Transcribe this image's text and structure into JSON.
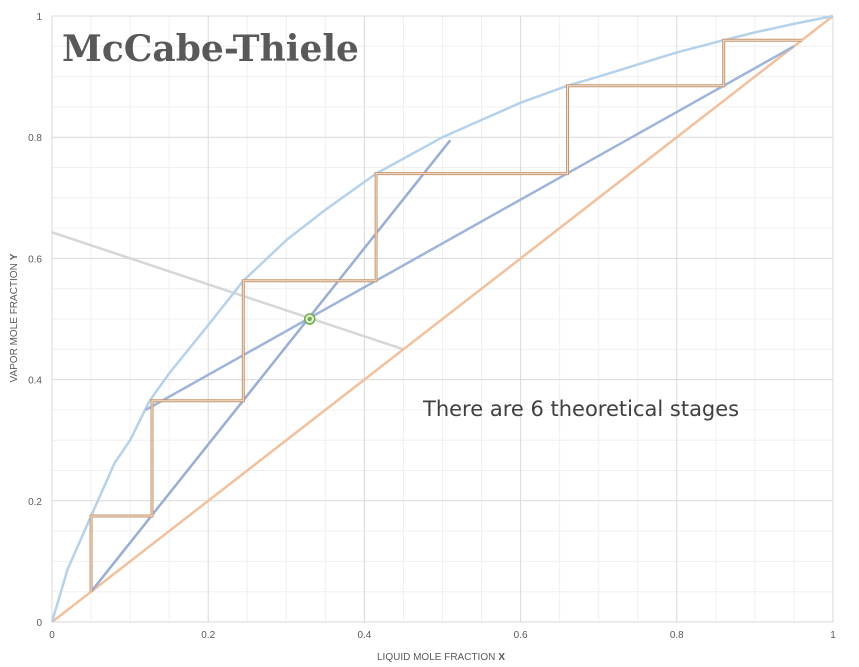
{
  "chart_data": {
    "type": "line",
    "title": "McCabe-Thiele",
    "xlabel": "LIQUID MOLE FRACTION",
    "xlabel_symbol": "X",
    "ylabel": "VAPOR MOLE FRACTION",
    "ylabel_symbol": "Y",
    "xlim": [
      0,
      1
    ],
    "ylim": [
      0,
      1
    ],
    "x_ticks": [
      0,
      0.2,
      0.4,
      0.6,
      0.8,
      1
    ],
    "x_tick_labels": [
      "0",
      "0.2",
      "0.4",
      "0.6",
      "0.8",
      "1"
    ],
    "y_ticks": [
      0,
      0.2,
      0.4,
      0.6,
      0.8,
      1
    ],
    "y_tick_labels": [
      "0",
      "0.2",
      "0.4",
      "0.6",
      "0.8",
      "1"
    ],
    "grid": true,
    "annotation": "There are 6 theoretical stages",
    "series": [
      {
        "key": "equilibrium",
        "color": "#b4d2ec",
        "x": [
          0,
          0.02,
          0.05,
          0.08,
          0.1,
          0.125,
          0.15,
          0.2,
          0.245,
          0.3,
          0.35,
          0.415,
          0.5,
          0.6,
          0.66,
          0.7,
          0.8,
          0.86,
          0.9,
          0.95,
          1
        ],
        "y": [
          0,
          0.087,
          0.175,
          0.262,
          0.3,
          0.365,
          0.41,
          0.49,
          0.563,
          0.63,
          0.68,
          0.74,
          0.8,
          0.857,
          0.885,
          0.9,
          0.94,
          0.96,
          0.973,
          0.987,
          1
        ]
      },
      {
        "key": "diagonal",
        "color": "#f4c09c",
        "x": [
          0,
          1
        ],
        "y": [
          0,
          1
        ]
      },
      {
        "key": "rectifying-line",
        "color": "#9db5dc",
        "x": [
          0.12,
          0.95
        ],
        "y": [
          0.35,
          0.95
        ]
      },
      {
        "key": "stripping-line",
        "color": "#9aaed4",
        "x": [
          0.05,
          0.51
        ],
        "y": [
          0.05,
          0.795
        ]
      },
      {
        "key": "feed-line",
        "color": "#d6d6d6",
        "x": [
          0,
          0.45
        ],
        "y": [
          0.643,
          0.45
        ]
      },
      {
        "key": "stages",
        "color": "#c8966c",
        "x": [
          0.05,
          0.05,
          0.128,
          0.128,
          0.245,
          0.245,
          0.415,
          0.415,
          0.66,
          0.66,
          0.86,
          0.86,
          0.96
        ],
        "y": [
          0.05,
          0.175,
          0.175,
          0.365,
          0.365,
          0.563,
          0.563,
          0.74,
          0.74,
          0.885,
          0.885,
          0.96,
          0.96
        ]
      }
    ],
    "feed_point": {
      "x": 0.33,
      "y": 0.5,
      "color": "#70ad47"
    }
  }
}
